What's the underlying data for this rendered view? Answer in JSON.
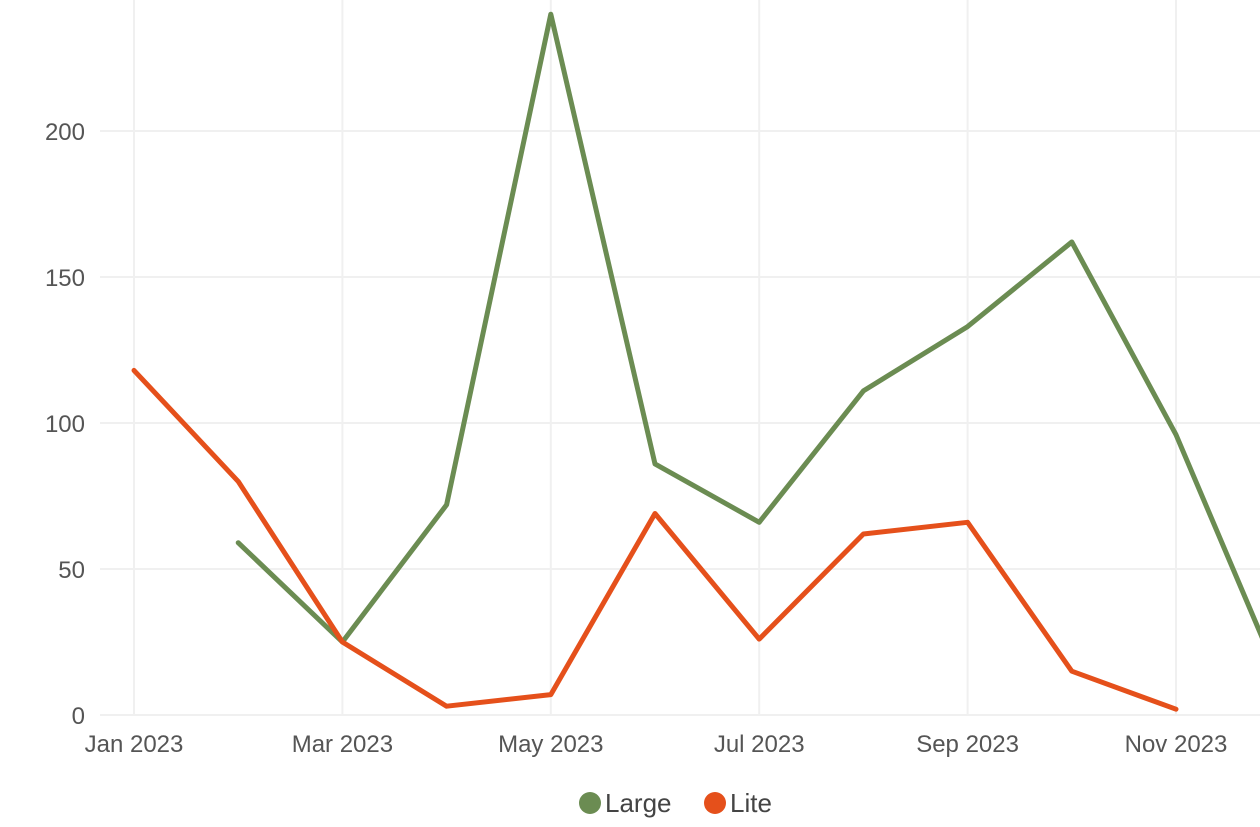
{
  "chart_data": {
    "type": "line",
    "title": "",
    "xlabel": "",
    "ylabel": "",
    "x": [
      "2023-01",
      "2023-02",
      "2023-03",
      "2023-04",
      "2023-05",
      "2023-06",
      "2023-07",
      "2023-08",
      "2023-09",
      "2023-10",
      "2023-11",
      "2023-12"
    ],
    "x_tick_labels": [
      "Jan 2023",
      "Mar 2023",
      "May 2023",
      "Jul 2023",
      "Sep 2023",
      "Nov 2023"
    ],
    "x_tick_positions": [
      "2023-01",
      "2023-03",
      "2023-05",
      "2023-07",
      "2023-09",
      "2023-11"
    ],
    "y_ticks": [
      0,
      50,
      100,
      150,
      200
    ],
    "ylim": [
      0,
      240
    ],
    "grid": true,
    "legend_position": "bottom",
    "series": [
      {
        "name": "Large",
        "color": "#6b8c52",
        "values": [
          null,
          59,
          25,
          72,
          240,
          86,
          66,
          111,
          133,
          162,
          96,
          12
        ]
      },
      {
        "name": "Lite",
        "color": "#e5501b",
        "values": [
          118,
          80,
          25,
          3,
          7,
          69,
          26,
          62,
          66,
          15,
          2,
          null
        ]
      }
    ]
  }
}
